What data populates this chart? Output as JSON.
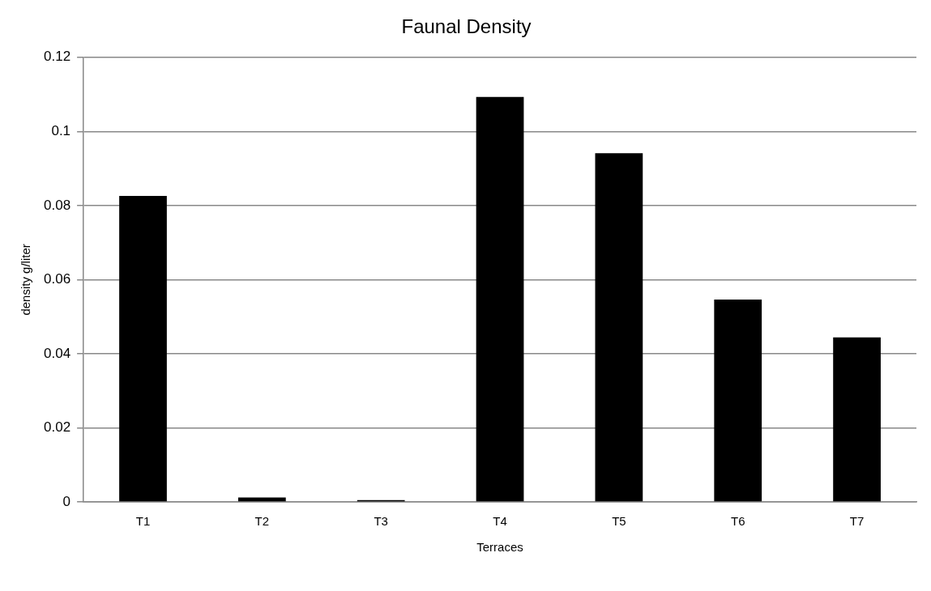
{
  "chart_data": {
    "type": "bar",
    "title": "Faunal Density",
    "xlabel": "Terraces",
    "ylabel": "density g/liter",
    "categories": [
      "T1",
      "T2",
      "T3",
      "T4",
      "T5",
      "T6",
      "T7"
    ],
    "values": [
      0.0826,
      0.0012,
      0.0005,
      0.1093,
      0.0941,
      0.0546,
      0.0444
    ],
    "color": "#000000",
    "ylim": [
      0,
      0.12
    ],
    "yticks": [
      0,
      0.02,
      0.04,
      0.06,
      0.08,
      0.1,
      0.12
    ],
    "grid": "y",
    "legend": false
  }
}
